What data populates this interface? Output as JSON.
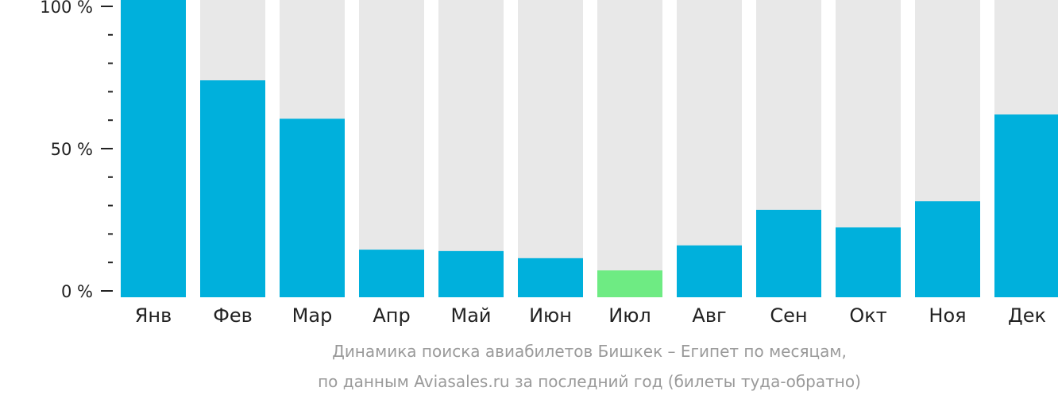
{
  "chart_data": {
    "type": "bar",
    "categories": [
      "Янв",
      "Фев",
      "Мар",
      "Апр",
      "Май",
      "Июн",
      "Июл",
      "Авг",
      "Сен",
      "Окт",
      "Ноя",
      "Дек"
    ],
    "values": [
      100,
      74,
      60.5,
      14.5,
      14,
      11.5,
      7.2,
      16,
      28.5,
      22.3,
      31.5,
      62
    ],
    "ylim": [
      0,
      100
    ],
    "yticks": [
      {
        "value": 100,
        "label": "100 %"
      },
      {
        "value": 50,
        "label": "50 %"
      },
      {
        "value": 0,
        "label": "0 %"
      }
    ],
    "minor_tick_step": 10,
    "highlight_category": "Июл",
    "grid": false,
    "legend": "none",
    "colors": {
      "bar": "#00b0dc",
      "highlight_bar": "#6eeb83",
      "bar_background": "#e8e8e8",
      "axis": "#222222"
    },
    "caption_lines": [
      "Динамика поиска авиабилетов Бишкек – Египет по месяцам,",
      "по данным Aviasales.ru за последний год (билеты туда-обратно)"
    ]
  }
}
